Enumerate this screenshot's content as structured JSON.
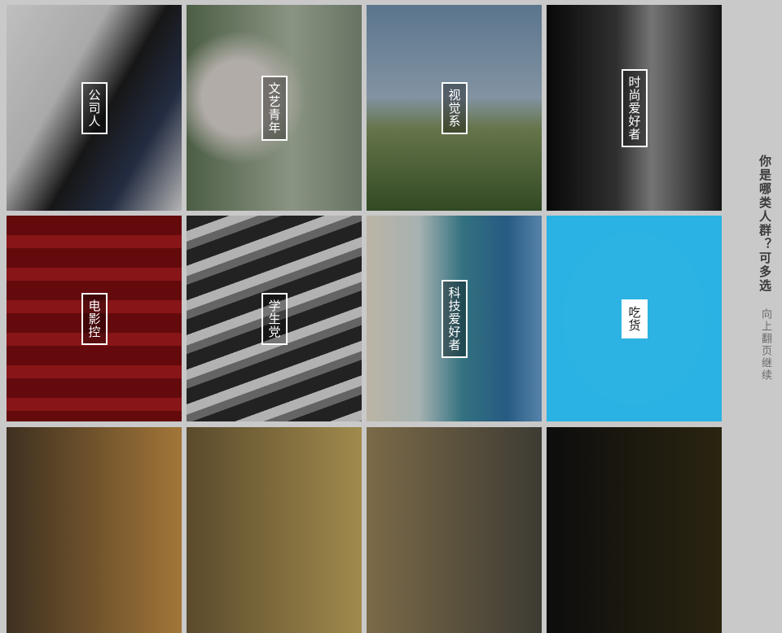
{
  "tiles": [
    {
      "label": "公司人",
      "selected": false
    },
    {
      "label": "文艺青年",
      "selected": false
    },
    {
      "label": "视觉系",
      "selected": false
    },
    {
      "label": "时尚爱好者",
      "selected": false
    },
    {
      "label": "电影控",
      "selected": false
    },
    {
      "label": "学生党",
      "selected": false
    },
    {
      "label": "科技爱好者",
      "selected": false
    },
    {
      "label": "吃货",
      "selected": true
    }
  ],
  "side": {
    "question": "你是哪类人群？可多选",
    "hint": "向上翻页继续"
  },
  "colors": {
    "selected": "#29b2e2",
    "background": "#c9c9c9"
  }
}
